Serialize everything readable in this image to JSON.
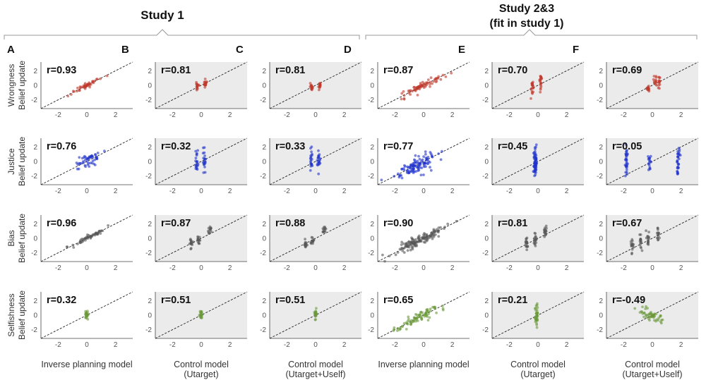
{
  "headers": {
    "study1": "Study 1",
    "study23_line1": "Study 2&3",
    "study23_line2": "(fit in study 1)"
  },
  "chart_data": {
    "type": "scatter",
    "panel_letters": [
      "A",
      "B",
      "C",
      "D",
      "E",
      "F"
    ],
    "rows": [
      {
        "name": "Wrongness",
        "ylabel": "Belief update",
        "color": "#c0392b",
        "r": [
          "r=0.93",
          "r=0.81",
          "r=0.81",
          "r=0.87",
          "r=0.70",
          "r=0.69"
        ]
      },
      {
        "name": "Justice",
        "ylabel": "Belief update",
        "color": "#2233cc",
        "r": [
          "r=0.76",
          "r=0.32",
          "r=0.33",
          "r=0.77",
          "r=0.45",
          "r=0.05"
        ]
      },
      {
        "name": "Bias",
        "ylabel": "Belief update",
        "color": "#555555",
        "r": [
          "r=0.96",
          "r=0.87",
          "r=0.88",
          "r=0.90",
          "r=0.81",
          "r=0.67"
        ]
      },
      {
        "name": "Selfishness",
        "ylabel": "Belief update",
        "color": "#6a9a3a",
        "r": [
          "r=0.32",
          "r=0.51",
          "r=0.51",
          "r=0.65",
          "r=0.21",
          "r=-0.49"
        ]
      }
    ],
    "xlabels": [
      [
        "Inverse planning model"
      ],
      [
        "Control model",
        "(Utarget)"
      ],
      [
        "Control model",
        "(Utarget+Uself)"
      ],
      [
        "Inverse planning model"
      ],
      [
        "Control model",
        "(Utarget)"
      ],
      [
        "Control model",
        "(Utarget+Uself)"
      ]
    ],
    "xticks": [
      "-2",
      "0",
      "2"
    ],
    "yticks": [
      "2",
      "0",
      "-2"
    ],
    "xlim": [
      -3.2,
      3.2
    ],
    "ylim": [
      -3.2,
      3.2
    ],
    "shaded_columns": [
      1,
      2,
      4,
      5
    ],
    "reference_line": "y = x (dashed)",
    "point_summaries": [
      [
        {
          "mode": "diag",
          "xc": 0,
          "xs": 0.5,
          "noise": 0.18,
          "n": 45
        },
        {
          "mode": "cols",
          "cols": [
            [
              -0.3,
              -0.1
            ],
            [
              0.3,
              0.2
            ]
          ],
          "ys": 0.3,
          "n": 30
        },
        {
          "mode": "cols",
          "cols": [
            [
              -0.3,
              -0.1
            ],
            [
              0.3,
              0.2
            ]
          ],
          "ys": 0.3,
          "n": 30
        },
        {
          "mode": "diag",
          "xc": 0,
          "xs": 0.7,
          "noise": 0.3,
          "n": 70
        },
        {
          "mode": "cols",
          "cols": [
            [
              -0.4,
              -0.4
            ],
            [
              0.2,
              0.6
            ]
          ],
          "ys": 0.5,
          "n": 40
        },
        {
          "mode": "cols",
          "cols": [
            [
              -0.3,
              -0.4
            ],
            [
              0.2,
              0.6
            ],
            [
              0.5,
              0.3
            ]
          ],
          "ys": 0.4,
          "n": 40
        }
      ],
      [
        {
          "mode": "diag",
          "xc": 0,
          "xs": 0.45,
          "noise": 0.5,
          "n": 50
        },
        {
          "mode": "cols",
          "cols": [
            [
              -0.3,
              0
            ],
            [
              0.2,
              0
            ]
          ],
          "ys": 0.8,
          "n": 40
        },
        {
          "mode": "cols",
          "cols": [
            [
              -0.3,
              0
            ],
            [
              0.2,
              0
            ]
          ],
          "ys": 0.8,
          "n": 40
        },
        {
          "mode": "diag",
          "xc": -0.5,
          "xs": 0.7,
          "noise": 0.55,
          "n": 110
        },
        {
          "mode": "cols",
          "cols": [
            [
              -0.2,
              0
            ]
          ],
          "ys": 0.9,
          "n": 70
        },
        {
          "mode": "cols",
          "cols": [
            [
              -0.2,
              0
            ],
            [
              -1.8,
              0.9
            ],
            [
              1.8,
              0.9
            ],
            [
              -1.8,
              -0.6
            ],
            [
              1.8,
              -0.6
            ]
          ],
          "ys": 0.7,
          "n": 80
        }
      ],
      [
        {
          "mode": "diag",
          "xc": 0,
          "xs": 0.8,
          "noise": 0.15,
          "n": 50
        },
        {
          "mode": "cols",
          "cols": [
            [
              -0.7,
              -0.8
            ],
            [
              -0.2,
              -0.3
            ],
            [
              0.6,
              1.1
            ]
          ],
          "ys": 0.35,
          "n": 40
        },
        {
          "mode": "cols",
          "cols": [
            [
              -0.7,
              -0.8
            ],
            [
              -0.2,
              -0.3
            ],
            [
              0.6,
              1.1
            ]
          ],
          "ys": 0.35,
          "n": 40
        },
        {
          "mode": "diag",
          "xc": -0.3,
          "xs": 0.9,
          "noise": 0.4,
          "n": 130
        },
        {
          "mode": "cols",
          "cols": [
            [
              -0.8,
              -0.7
            ],
            [
              -0.2,
              -0.2
            ],
            [
              0.5,
              1.0
            ]
          ],
          "ys": 0.45,
          "n": 50
        },
        {
          "mode": "cols",
          "cols": [
            [
              -0.8,
              -0.5
            ],
            [
              -0.3,
              -0.1
            ],
            [
              0.4,
              0.5
            ],
            [
              -1.4,
              -0.7
            ]
          ],
          "ys": 0.5,
          "n": 60
        }
      ],
      [
        {
          "mode": "diag",
          "xc": 0,
          "xs": 0.05,
          "noise": 0.3,
          "n": 25
        },
        {
          "mode": "cols",
          "cols": [
            [
              0,
              0
            ]
          ],
          "ys": 0.3,
          "n": 20
        },
        {
          "mode": "cols",
          "cols": [
            [
              0,
              0
            ]
          ],
          "ys": 0.3,
          "n": 20
        },
        {
          "mode": "diag",
          "xc": -0.3,
          "xs": 0.8,
          "noise": 0.35,
          "n": 80
        },
        {
          "mode": "cols",
          "cols": [
            [
              -0.1,
              0
            ]
          ],
          "ys": 0.7,
          "n": 40
        },
        {
          "mode": "anti",
          "xc": -0.2,
          "xs": 0.5,
          "noise": 0.35,
          "n": 50
        }
      ]
    ]
  }
}
